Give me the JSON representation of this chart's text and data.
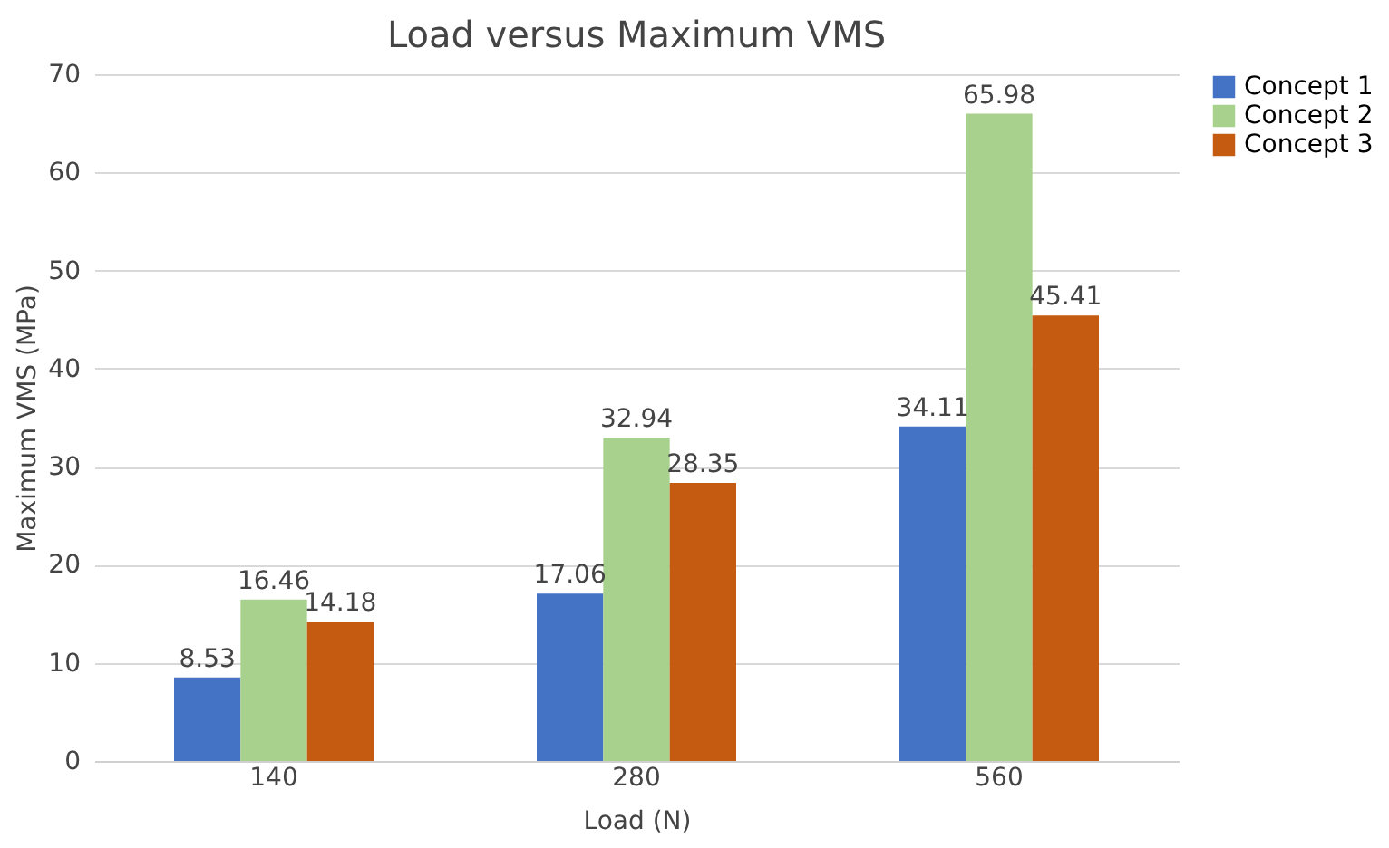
{
  "chart_data": {
    "type": "bar",
    "title": "Load versus Maximum VMS",
    "xlabel": "Load (N)",
    "ylabel": "Maximum VMS (MPa)",
    "categories": [
      "140",
      "280",
      "560"
    ],
    "series": [
      {
        "name": "Concept 1",
        "color": "#4472c4",
        "values": [
          8.53,
          17.06,
          34.11
        ]
      },
      {
        "name": "Concept 2",
        "color": "#a9d18e",
        "values": [
          16.46,
          32.94,
          65.98
        ]
      },
      {
        "name": "Concept 3",
        "color": "#c55a11",
        "values": [
          14.18,
          28.35,
          45.41
        ]
      }
    ],
    "ylim": [
      0,
      70
    ],
    "yticks": [
      0,
      10,
      20,
      30,
      40,
      50,
      60,
      70
    ],
    "grid": "y",
    "legend": "right",
    "data_labels": true
  }
}
